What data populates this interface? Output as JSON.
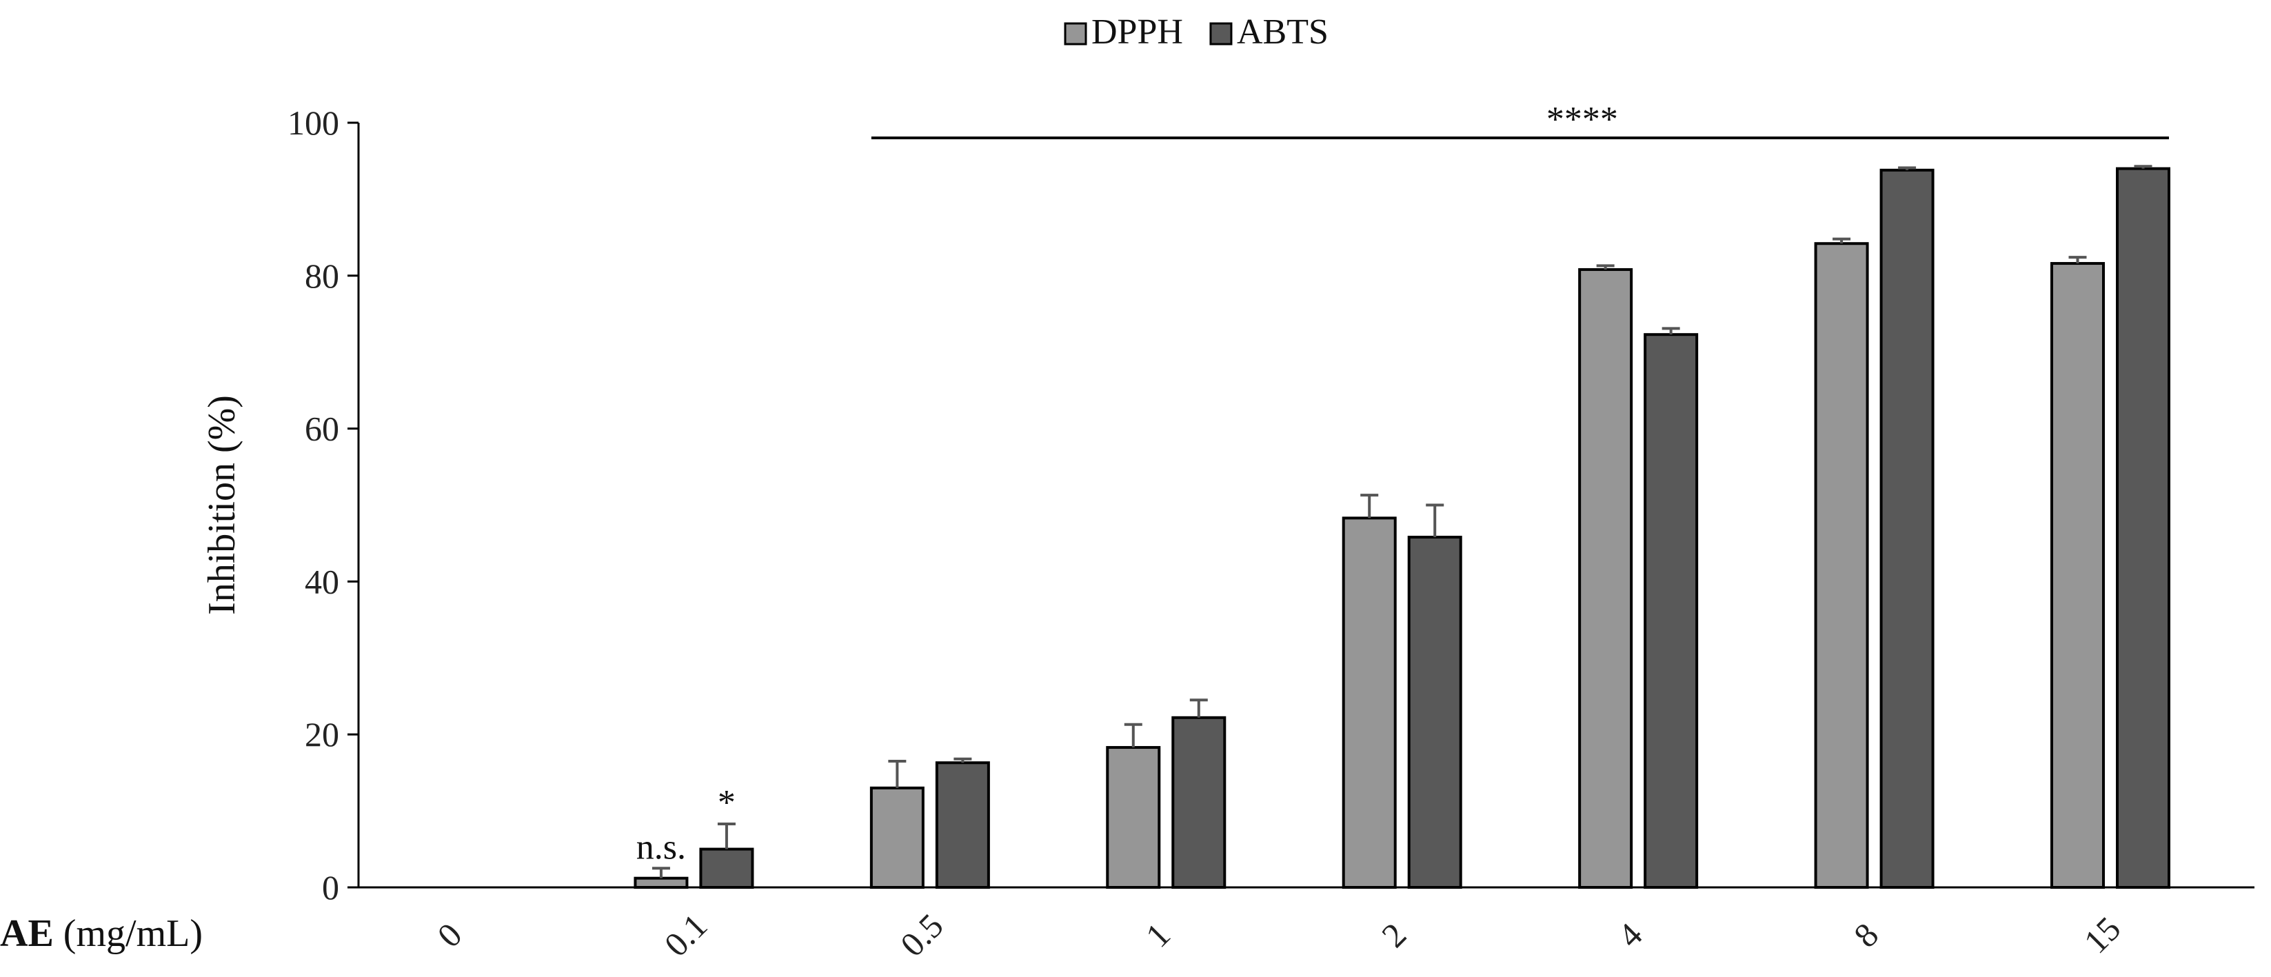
{
  "chart_data": {
    "type": "bar",
    "title": "",
    "xlabel_bold": "AE",
    "xlabel_rest": " (mg/mL)",
    "ylabel": "Inhibition (%)",
    "ylim": [
      0,
      100
    ],
    "yticks": [
      "0",
      "20",
      "40",
      "60",
      "80",
      "100"
    ],
    "categories": [
      "0",
      "0.1",
      "0.5",
      "1",
      "2",
      "4",
      "8",
      "15"
    ],
    "series": [
      {
        "name": "DPPH",
        "color": "#969696",
        "values": [
          0,
          1.2,
          13,
          18.3,
          48.3,
          80.8,
          84.2,
          81.6
        ],
        "errors": [
          0,
          1.3,
          3.5,
          3.0,
          3.0,
          0.5,
          0.6,
          0.8
        ]
      },
      {
        "name": "ABTS",
        "color": "#595959",
        "values": [
          0,
          5,
          16.3,
          22.2,
          45.8,
          72.3,
          93.8,
          94
        ],
        "errors": [
          0,
          3.3,
          0.5,
          2.3,
          4.2,
          0.8,
          0.3,
          0.3
        ]
      }
    ],
    "annotations": {
      "significance_bar": "****",
      "bar_start_category": "0.5",
      "bar_end_category": "15",
      "point_labels": [
        {
          "category": "0.1",
          "series": "DPPH",
          "text": "n.s."
        },
        {
          "category": "0.1",
          "series": "ABTS",
          "text": "*"
        }
      ]
    },
    "legend": "top-center",
    "grid": false
  }
}
